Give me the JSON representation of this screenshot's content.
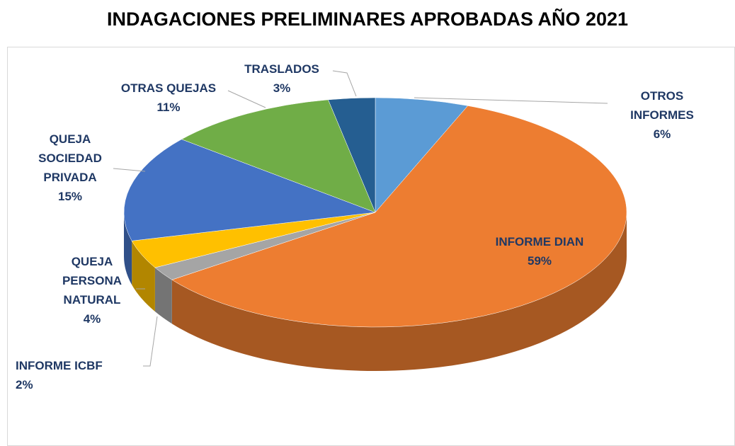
{
  "chart_data": {
    "type": "pie3d",
    "title": "INDAGACIONES PRELIMINARES APROBADAS AÑO 2021",
    "categories": [
      "OTROS INFORMES",
      "INFORME DIAN",
      "INFORME ICBF",
      "QUEJA PERSONA NATURAL",
      "QUEJA SOCIEDAD PRIVADA",
      "OTRAS QUEJAS",
      "TRASLADOS"
    ],
    "values": [
      6,
      59,
      2,
      4,
      15,
      11,
      3
    ],
    "value_labels": [
      "6%",
      "59%",
      "2%",
      "4%",
      "15%",
      "11%",
      "3%"
    ],
    "colors": [
      "#5b9bd5",
      "#ed7d31",
      "#a5a5a5",
      "#ffc000",
      "#4472c4",
      "#70ad47",
      "#255e91"
    ]
  }
}
